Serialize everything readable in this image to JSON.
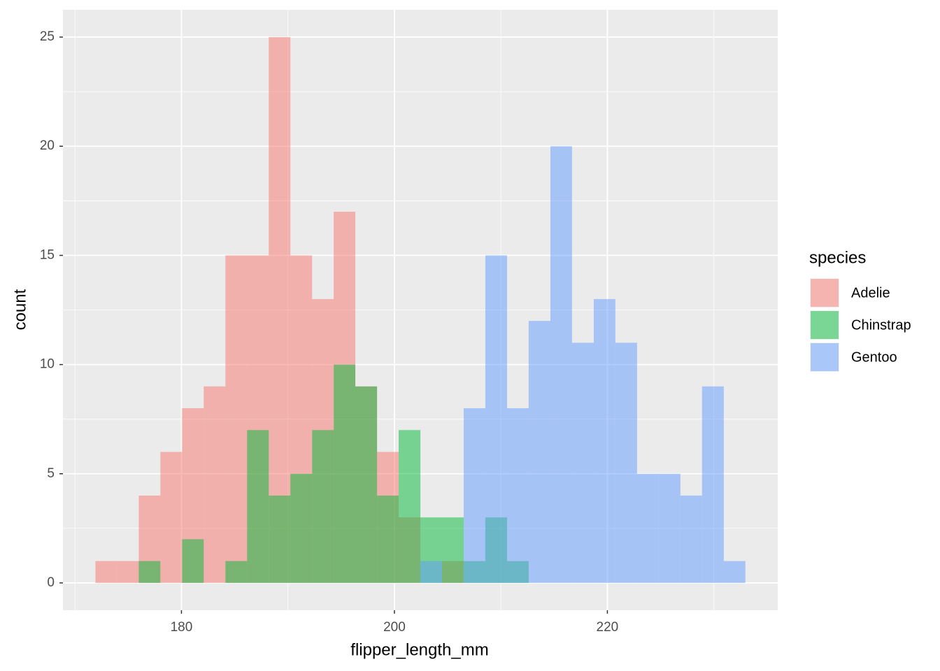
{
  "chart_data": {
    "type": "histogram",
    "x_label": "flipper_length_mm",
    "y_label": "count",
    "legend_title": "species",
    "legend_position": "right",
    "bins": [
      171.92,
      173.95,
      175.99,
      178.02,
      180.06,
      182.09,
      184.13,
      186.16,
      188.2,
      190.23,
      192.27,
      194.3,
      196.33,
      198.37,
      200.4,
      202.44,
      204.47,
      206.51,
      208.54,
      210.58,
      212.61,
      214.65,
      216.68,
      218.72,
      220.75,
      222.79,
      224.82,
      226.86,
      228.89,
      230.93,
      232.96
    ],
    "series": [
      {
        "name": "Adelie",
        "color": "#F8766D",
        "values": [
          1,
          1,
          4,
          6,
          8,
          9,
          15,
          15,
          25,
          15,
          13,
          17,
          9,
          6,
          3,
          0,
          1,
          0,
          0,
          0,
          0,
          0,
          0,
          0,
          0,
          0,
          0,
          0,
          0,
          0
        ]
      },
      {
        "name": "Chinstrap",
        "color": "#00BA38",
        "values": [
          0,
          0,
          1,
          0,
          2,
          0,
          1,
          7,
          4,
          5,
          7,
          10,
          9,
          4,
          7,
          3,
          3,
          1,
          3,
          1,
          0,
          0,
          0,
          0,
          0,
          0,
          0,
          0,
          0,
          0
        ]
      },
      {
        "name": "Gentoo",
        "color": "#619CFF",
        "values": [
          0,
          0,
          0,
          0,
          0,
          0,
          0,
          0,
          0,
          0,
          0,
          0,
          0,
          0,
          0,
          1,
          0,
          8,
          15,
          8,
          12,
          20,
          11,
          13,
          11,
          5,
          5,
          4,
          9,
          1
        ]
      }
    ],
    "opacity": 0.5,
    "xlim": [
      168.87,
      236.0
    ],
    "ylim": [
      -1.25,
      26.25
    ],
    "xticks": [
      180,
      200,
      220
    ],
    "yticks": [
      0,
      5,
      10,
      15,
      20,
      25
    ],
    "x_minor_grid": [
      170,
      190,
      210,
      230
    ],
    "y_minor_grid": [
      2.5,
      7.5,
      12.5,
      17.5,
      22.5
    ],
    "grid": true
  }
}
